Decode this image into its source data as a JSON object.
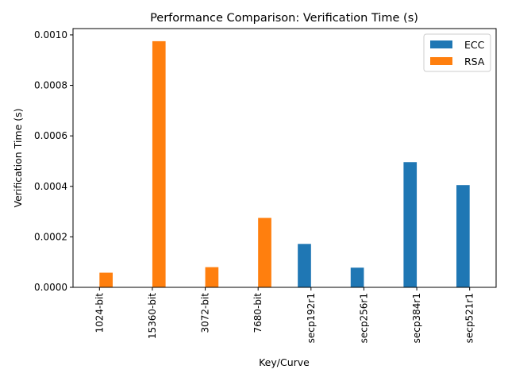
{
  "colors": {
    "ECC": "#1f77b4",
    "RSA": "#ff7f0e"
  },
  "chart_data": {
    "type": "bar",
    "title": "Performance Comparison: Verification Time (s)",
    "xlabel": "Key/Curve",
    "ylabel": "Verification Time (s)",
    "categories": [
      "1024-bit",
      "15360-bit",
      "3072-bit",
      "7680-bit",
      "secp192r1",
      "secp256r1",
      "secp384r1",
      "secp521r1"
    ],
    "series": [
      {
        "name": "ECC",
        "values": [
          null,
          null,
          null,
          null,
          0.000172,
          7.8e-05,
          0.000496,
          0.000405
        ]
      },
      {
        "name": "RSA",
        "values": [
          5.8e-05,
          0.000975,
          8e-05,
          0.000275,
          null,
          null,
          null,
          null
        ]
      }
    ],
    "ylim": [
      0,
      0.001025
    ],
    "yticks": [
      "0.0000",
      "0.0002",
      "0.0004",
      "0.0006",
      "0.0008",
      "0.0010"
    ],
    "legend": "top-right",
    "grid": false
  }
}
